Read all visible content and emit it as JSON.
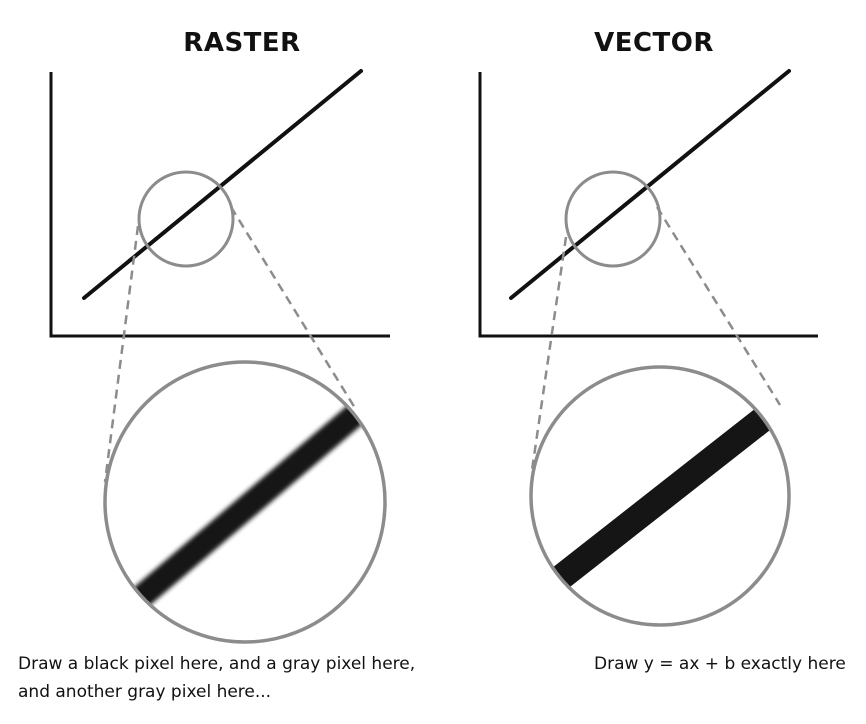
{
  "panels": {
    "raster": {
      "title": "RASTER",
      "caption_line1": "Draw a black pixel here, and a gray pixel here,",
      "caption_line2": "and another gray pixel here..."
    },
    "vector": {
      "title": "VECTOR",
      "caption": "Draw y = ax + b exactly here"
    }
  },
  "colors": {
    "axis": "#111111",
    "line": "#111111",
    "magnifier": "#8c8c8c",
    "thick_line": "#151515"
  }
}
